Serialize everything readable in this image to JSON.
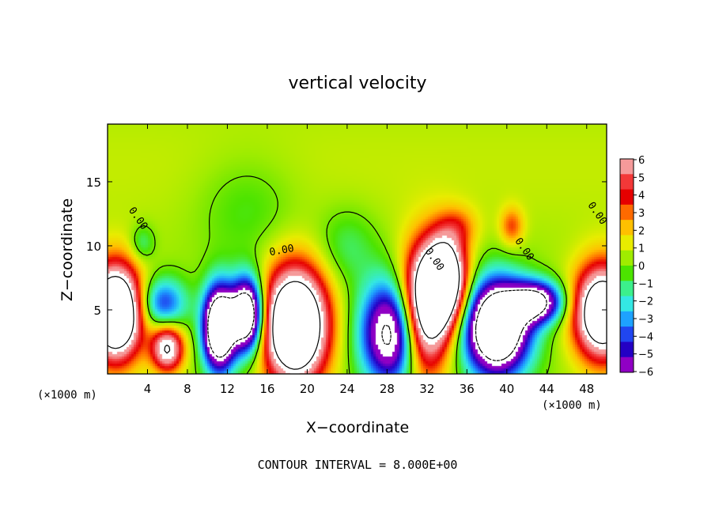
{
  "chart_data": {
    "type": "heatmap",
    "title": "vertical velocity",
    "xlabel": "X−coordinate",
    "ylabel": "Z−coordinate",
    "x_unit_label": "(×1000 m)",
    "footer": "CONTOUR INTERVAL = 8.000E+00",
    "xlim": [
      0,
      50
    ],
    "ylim": [
      0,
      19.5
    ],
    "x_ticks": [
      4,
      8,
      12,
      16,
      20,
      24,
      28,
      32,
      36,
      40,
      44,
      48
    ],
    "y_ticks": [
      5,
      10,
      15
    ],
    "colorbar": {
      "ticks": [
        "6",
        "5",
        "4",
        "3",
        "2",
        "1",
        "0",
        "−1",
        "−2",
        "−3",
        "−4",
        "−5",
        "−6"
      ],
      "colors": [
        "#f59a9a",
        "#f33838",
        "#e60000",
        "#ff6a00",
        "#ffc000",
        "#e8ec00",
        "#a0ec00",
        "#4ce400",
        "#3cf08c",
        "#34e8e4",
        "#1ea2ff",
        "#2046f0",
        "#2400c4",
        "#9000c4"
      ]
    },
    "contour_labels": [
      "0.00",
      "0.00",
      "0.00",
      "0.00",
      "0.00"
    ],
    "features": [
      {
        "kind": "updraft",
        "x": 0.8,
        "z": 4.8,
        "rx": 2.6,
        "rz": 3.6,
        "peak": 14
      },
      {
        "kind": "updraft",
        "x": 6.0,
        "z": 2.0,
        "rx": 1.6,
        "rz": 1.8,
        "peak": 8
      },
      {
        "kind": "updraft",
        "x": 18.8,
        "z": 3.8,
        "rx": 3.2,
        "rz": 4.4,
        "peak": 14
      },
      {
        "kind": "updraft",
        "x": 31.5,
        "z": 4.5,
        "rx": 2.5,
        "rz": 4.8,
        "peak": 12
      },
      {
        "kind": "updraft",
        "x": 33.8,
        "z": 7.2,
        "rx": 2.2,
        "rz": 3.5,
        "peak": 12
      },
      {
        "kind": "updraft",
        "x": 49.6,
        "z": 4.8,
        "rx": 2.8,
        "rz": 3.6,
        "peak": 12
      },
      {
        "kind": "updraft",
        "x": 40.5,
        "z": 11.5,
        "rx": 1.2,
        "rz": 1.5,
        "peak": 3
      },
      {
        "kind": "updraft",
        "x": 35.2,
        "z": 11.5,
        "rx": 2.0,
        "rz": 1.6,
        "peak": 2
      },
      {
        "kind": "downdraft",
        "x": 11.2,
        "z": 3.6,
        "rx": 1.6,
        "rz": 3.2,
        "peak": -14
      },
      {
        "kind": "downdraft",
        "x": 14.0,
        "z": 4.6,
        "rx": 1.6,
        "rz": 2.8,
        "peak": -13
      },
      {
        "kind": "downdraft",
        "x": 28.8,
        "z": 3.2,
        "rx": 3.2,
        "rz": 4.0,
        "peak": -11
      },
      {
        "kind": "downdraft",
        "x": 39.0,
        "z": 3.6,
        "rx": 3.2,
        "rz": 3.6,
        "peak": -14
      },
      {
        "kind": "downdraft",
        "x": 43.0,
        "z": 5.6,
        "rx": 2.6,
        "rz": 1.6,
        "peak": -9
      },
      {
        "kind": "downdraft",
        "x": 5.5,
        "z": 5.5,
        "rx": 2.4,
        "rz": 2.0,
        "peak": -5
      },
      {
        "kind": "downdraft",
        "x": 3.5,
        "z": 10.2,
        "rx": 1.2,
        "rz": 1.4,
        "peak": -2
      },
      {
        "kind": "downdraft",
        "x": 14.0,
        "z": 13.0,
        "rx": 5.0,
        "rz": 4.0,
        "peak": -1.3
      },
      {
        "kind": "downdraft",
        "x": 24.0,
        "z": 10.0,
        "rx": 3.0,
        "rz": 3.0,
        "peak": -1.6
      }
    ]
  }
}
